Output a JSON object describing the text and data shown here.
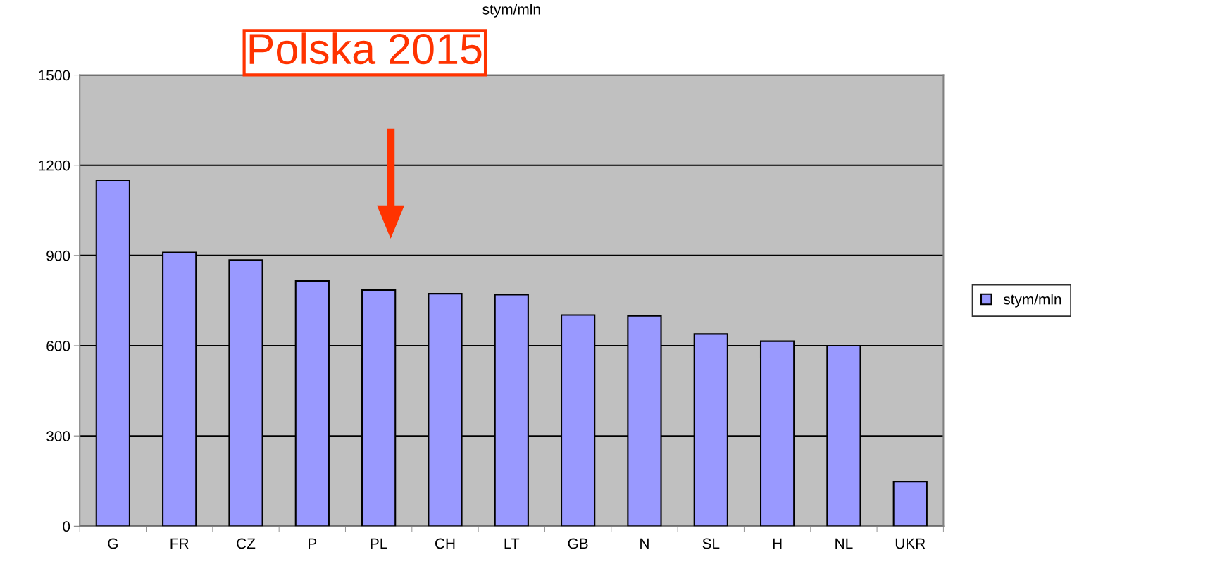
{
  "chart_data": {
    "type": "bar",
    "title": "stym/mln",
    "categories": [
      "G",
      "FR",
      "CZ",
      "P",
      "PL",
      "CH",
      "LT",
      "GB",
      "N",
      "SL",
      "H",
      "NL",
      "UKR"
    ],
    "series": [
      {
        "name": "stym/mln",
        "color": "#9999ff",
        "values": [
          1150,
          910,
          885,
          815,
          785,
          773,
          770,
          702,
          699,
          639,
          615,
          600,
          148
        ]
      }
    ],
    "ylim": [
      0,
      1500
    ],
    "yticks": [
      0,
      300,
      600,
      900,
      1200,
      1500
    ],
    "grid": "y",
    "legend": "right",
    "annotations": [
      "Polska 2015"
    ]
  }
}
